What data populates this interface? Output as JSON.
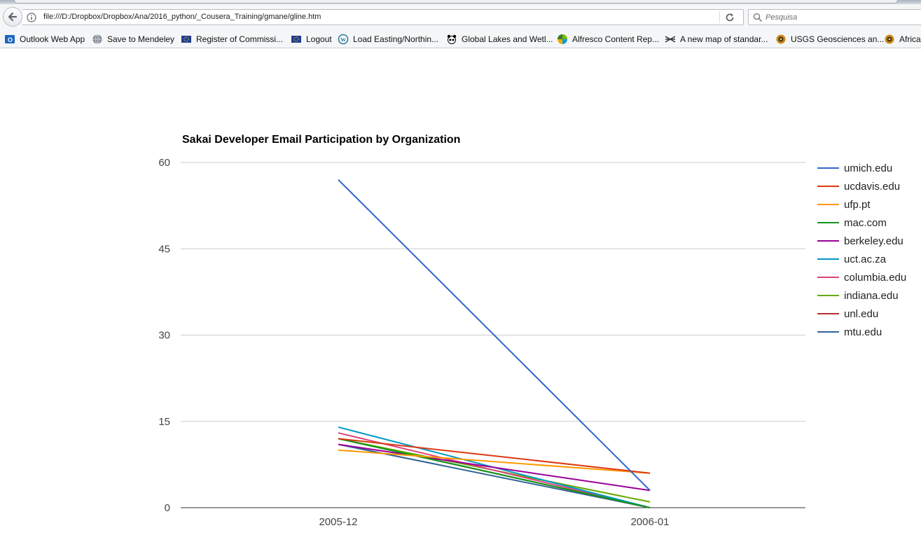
{
  "browser": {
    "url": "file:///D:/Dropbox/Dropbox/Ana/2016_python/_Cousera_Training/gmane/gline.htm",
    "search_placeholder": "Pesquisa",
    "bookmarks": [
      {
        "label": "Outlook Web App",
        "icon": "outlook-icon"
      },
      {
        "label": "Save to Mendeley",
        "icon": "globe-icon"
      },
      {
        "label": "Register of Commissi...",
        "icon": "eu-flag-icon"
      },
      {
        "label": "Logout",
        "icon": "eu-flag-icon"
      },
      {
        "label": "Load Easting/Northin...",
        "icon": "wordpress-icon"
      },
      {
        "label": "Global Lakes and Wetl...",
        "icon": "panda-icon"
      },
      {
        "label": "Alfresco Content Rep...",
        "icon": "alfresco-icon"
      },
      {
        "label": "A new map of standar...",
        "icon": "map-icon"
      },
      {
        "label": "USGS Geosciences an...",
        "icon": "usgs-icon"
      },
      {
        "label": "Africa",
        "icon": "usgs-icon"
      }
    ]
  },
  "chart_data": {
    "type": "line",
    "title": "Sakai Developer Email Participation by Organization",
    "xlabel": "",
    "ylabel": "",
    "categories": [
      "2005-12",
      "2006-01"
    ],
    "ylim": [
      0,
      60
    ],
    "yticks": [
      "0",
      "15",
      "30",
      "45",
      "60"
    ],
    "grid": true,
    "legend_position": "right",
    "series": [
      {
        "name": "umich.edu",
        "values": [
          57,
          3
        ],
        "color": "#3366cc"
      },
      {
        "name": "ucdavis.edu",
        "values": [
          12,
          6
        ],
        "color": "#dc3912"
      },
      {
        "name": "ufp.pt",
        "values": [
          10,
          6
        ],
        "color": "#ff9900"
      },
      {
        "name": "mac.com",
        "values": [
          12,
          0
        ],
        "color": "#109618"
      },
      {
        "name": "berkeley.edu",
        "values": [
          11,
          3
        ],
        "color": "#990099"
      },
      {
        "name": "uct.ac.za",
        "values": [
          14,
          0
        ],
        "color": "#0099c6"
      },
      {
        "name": "columbia.edu",
        "values": [
          13,
          0
        ],
        "color": "#dd4477"
      },
      {
        "name": "indiana.edu",
        "values": [
          12,
          1
        ],
        "color": "#66aa00"
      },
      {
        "name": "unl.edu",
        "values": [
          12,
          0
        ],
        "color": "#b82e2e"
      },
      {
        "name": "mtu.edu",
        "values": [
          11,
          0
        ],
        "color": "#316395"
      }
    ]
  }
}
